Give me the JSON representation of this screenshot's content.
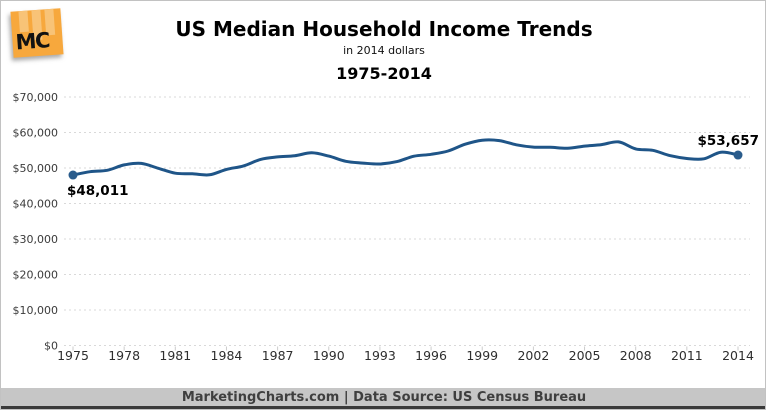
{
  "logo": {
    "text": "MC"
  },
  "header": {
    "title": "US Median Household Income Trends",
    "subtitle": "in 2014 dollars",
    "period": "1975-2014"
  },
  "footer": {
    "text": "MarketingCharts.com | Data Source: US Census Bureau"
  },
  "colors": {
    "line": "#1F5588",
    "marker": "#2A5C8C",
    "grid": "#D9D9D9",
    "tick": "#CCCCCC",
    "y_label_text": "#3B3B3B",
    "x_label_text": "#2E2E2E",
    "annotation_text": "#000000",
    "logo_orange": "#F7A83D",
    "footer_bg": "#C6C6C6",
    "footer_text": "#3F3F3F"
  },
  "chart_data": {
    "type": "line",
    "title": "US Median Household Income Trends",
    "subtitle": "in 2014 dollars",
    "period_label": "1975-2014",
    "series_name": "US median household income (2014 dollars)",
    "x": [
      1975,
      1976,
      1977,
      1978,
      1979,
      1980,
      1981,
      1982,
      1983,
      1984,
      1985,
      1986,
      1987,
      1988,
      1989,
      1990,
      1991,
      1992,
      1993,
      1994,
      1995,
      1996,
      1997,
      1998,
      1999,
      2000,
      2001,
      2002,
      2003,
      2004,
      2005,
      2006,
      2007,
      2008,
      2009,
      2010,
      2011,
      2012,
      2013,
      2014
    ],
    "values": [
      48011,
      48957,
      49364,
      50861,
      51295,
      49919,
      48546,
      48375,
      48095,
      49606,
      50584,
      52436,
      53138,
      53434,
      54280,
      53350,
      51886,
      51392,
      51136,
      51809,
      53331,
      53857,
      54795,
      56716,
      57843,
      57724,
      56531,
      55889,
      55832,
      55565,
      56160,
      56598,
      57357,
      55376,
      54988,
      53507,
      52690,
      52605,
      54462,
      53657
    ],
    "xlabel": "",
    "ylabel": "",
    "ylim": [
      0,
      70000
    ],
    "ytick_step": 10000,
    "ytick_labels": [
      "$0",
      "$10,000",
      "$20,000",
      "$30,000",
      "$40,000",
      "$50,000",
      "$60,000",
      "$70,000"
    ],
    "xticks": [
      1975,
      1978,
      1981,
      1984,
      1987,
      1990,
      1993,
      1996,
      1999,
      2002,
      2005,
      2008,
      2011,
      2014
    ],
    "grid": "dotted-horizontal",
    "legend": "none",
    "annotations": [
      {
        "year": 1975,
        "value": 48011,
        "label": "$48,011",
        "placement": "below-left"
      },
      {
        "year": 2014,
        "value": 53657,
        "label": "$53,657",
        "placement": "above-right"
      }
    ]
  }
}
